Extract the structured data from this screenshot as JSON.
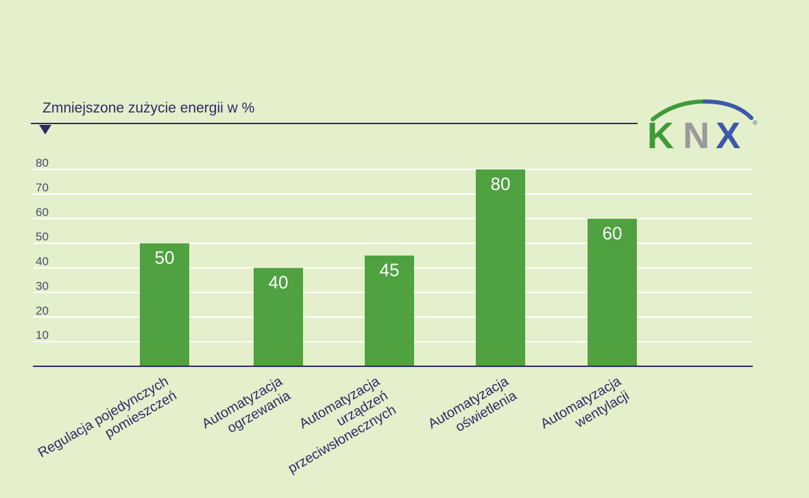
{
  "chart_data": {
    "type": "bar",
    "title": "Zmniejszone zużycie energii w %",
    "categories": [
      [
        "Regulacja pojedynczych",
        "pomieszczeń"
      ],
      [
        "Automatyzacja",
        "ogrzewania"
      ],
      [
        "Automatyzacja",
        "urządzeń",
        "przeciwsłonecznych"
      ],
      [
        "Automatyzacja",
        "oświetlenia"
      ],
      [
        "Automatyzacja",
        "wentylacji"
      ]
    ],
    "values": [
      50,
      40,
      45,
      80,
      60
    ],
    "data_labels": [
      "50",
      "40",
      "45",
      "80",
      "60"
    ],
    "yticks": [
      "10",
      "20",
      "30",
      "40",
      "50",
      "60",
      "70",
      "80"
    ],
    "ylim": [
      0,
      80
    ],
    "grid": true,
    "colors": {
      "bar": "#4fa23f",
      "axis": "#2f2a66",
      "grid": "#ffffff",
      "label": "#2f2a66",
      "tick": "#4a4a6a",
      "value_text": "#ffffff",
      "background": "#e4efcb"
    }
  },
  "logo": {
    "text": "KNX",
    "registered": "®",
    "colors": {
      "k": "#3f9a3a",
      "n": "#9a9a9a",
      "x": "#3e59a8",
      "arc_left": "#3f9a3a",
      "arc_right": "#3e59a8"
    }
  }
}
